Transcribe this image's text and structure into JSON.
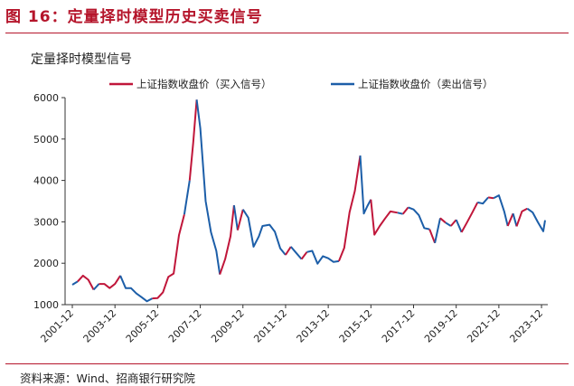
{
  "figure_title": "图 16：定量择时模型历史买卖信号",
  "source": "资料来源：Wind、招商银行研究院",
  "colors": {
    "buy": "#c0163a",
    "sell": "#1c5ea8",
    "accent": "#b5152b"
  },
  "chart_data": {
    "type": "line",
    "title": "定量择时模型信号",
    "xlabel": "",
    "ylabel": "",
    "ylim": [
      1000,
      6000
    ],
    "yticks": [
      1000,
      2000,
      3000,
      4000,
      5000,
      6000
    ],
    "xlim": [
      "2001-12",
      "2024-02"
    ],
    "xticks": [
      "2001-12",
      "2003-12",
      "2005-12",
      "2007-12",
      "2009-12",
      "2011-12",
      "2013-12",
      "2015-12",
      "2017-12",
      "2019-12",
      "2021-12",
      "2023-12"
    ],
    "legend_position": "top",
    "grid": false,
    "series": [
      {
        "name": "上证指数收盘价（买入信号）",
        "color": "#c0163a"
      },
      {
        "name": "上证指数收盘价（卖出信号）",
        "color": "#1c5ea8"
      }
    ],
    "points": [
      [
        "2001-12",
        1480,
        "s"
      ],
      [
        "2002-03",
        1560,
        "s"
      ],
      [
        "2002-06",
        1700,
        "b"
      ],
      [
        "2002-09",
        1600,
        "b"
      ],
      [
        "2002-12",
        1360,
        "b"
      ],
      [
        "2003-03",
        1500,
        "s"
      ],
      [
        "2003-06",
        1500,
        "b"
      ],
      [
        "2003-09",
        1400,
        "b"
      ],
      [
        "2003-12",
        1500,
        "b"
      ],
      [
        "2004-03",
        1700,
        "b"
      ],
      [
        "2004-06",
        1400,
        "s"
      ],
      [
        "2004-09",
        1400,
        "s"
      ],
      [
        "2004-12",
        1270,
        "s"
      ],
      [
        "2005-03",
        1180,
        "s"
      ],
      [
        "2005-06",
        1080,
        "s"
      ],
      [
        "2005-09",
        1150,
        "s"
      ],
      [
        "2005-12",
        1160,
        "b"
      ],
      [
        "2006-03",
        1300,
        "b"
      ],
      [
        "2006-06",
        1670,
        "b"
      ],
      [
        "2006-09",
        1750,
        "b"
      ],
      [
        "2006-12",
        2680,
        "b"
      ],
      [
        "2007-03",
        3180,
        "b"
      ],
      [
        "2007-06",
        4000,
        "s"
      ],
      [
        "2007-08",
        4900,
        "b"
      ],
      [
        "2007-10",
        5950,
        "b"
      ],
      [
        "2007-12",
        5260,
        "s"
      ],
      [
        "2008-03",
        3500,
        "s"
      ],
      [
        "2008-06",
        2750,
        "s"
      ],
      [
        "2008-09",
        2300,
        "s"
      ],
      [
        "2008-11",
        1730,
        "s"
      ],
      [
        "2009-02",
        2100,
        "b"
      ],
      [
        "2009-05",
        2650,
        "b"
      ],
      [
        "2009-07",
        3400,
        "b"
      ],
      [
        "2009-09",
        2800,
        "s"
      ],
      [
        "2009-12",
        3300,
        "b"
      ],
      [
        "2010-03",
        3100,
        "s"
      ],
      [
        "2010-06",
        2400,
        "s"
      ],
      [
        "2010-09",
        2650,
        "s"
      ],
      [
        "2010-11",
        2900,
        "s"
      ],
      [
        "2011-03",
        2930,
        "s"
      ],
      [
        "2011-06",
        2760,
        "s"
      ],
      [
        "2011-09",
        2360,
        "s"
      ],
      [
        "2011-12",
        2200,
        "s"
      ],
      [
        "2012-03",
        2400,
        "b"
      ],
      [
        "2012-06",
        2250,
        "s"
      ],
      [
        "2012-09",
        2100,
        "s"
      ],
      [
        "2012-12",
        2270,
        "b"
      ],
      [
        "2013-03",
        2300,
        "s"
      ],
      [
        "2013-06",
        1990,
        "s"
      ],
      [
        "2013-09",
        2170,
        "s"
      ],
      [
        "2013-12",
        2120,
        "s"
      ],
      [
        "2014-03",
        2030,
        "s"
      ],
      [
        "2014-06",
        2050,
        "s"
      ],
      [
        "2014-09",
        2370,
        "b"
      ],
      [
        "2014-12",
        3230,
        "b"
      ],
      [
        "2015-03",
        3750,
        "b"
      ],
      [
        "2015-06",
        4600,
        "b"
      ],
      [
        "2015-08",
        3200,
        "s"
      ],
      [
        "2015-10",
        3380,
        "s"
      ],
      [
        "2015-12",
        3540,
        "s"
      ],
      [
        "2016-02",
        2690,
        "b"
      ],
      [
        "2016-05",
        2900,
        "b"
      ],
      [
        "2016-08",
        3080,
        "b"
      ],
      [
        "2016-11",
        3250,
        "b"
      ],
      [
        "2017-03",
        3220,
        "b"
      ],
      [
        "2017-06",
        3190,
        "s"
      ],
      [
        "2017-09",
        3350,
        "b"
      ],
      [
        "2017-12",
        3300,
        "s"
      ],
      [
        "2018-03",
        3160,
        "s"
      ],
      [
        "2018-06",
        2850,
        "s"
      ],
      [
        "2018-09",
        2820,
        "s"
      ],
      [
        "2018-12",
        2490,
        "b"
      ],
      [
        "2019-03",
        3090,
        "s"
      ],
      [
        "2019-06",
        2980,
        "b"
      ],
      [
        "2019-09",
        2900,
        "s"
      ],
      [
        "2019-12",
        3050,
        "b"
      ],
      [
        "2020-03",
        2750,
        "s"
      ],
      [
        "2020-06",
        2980,
        "b"
      ],
      [
        "2020-09",
        3220,
        "b"
      ],
      [
        "2020-12",
        3470,
        "b"
      ],
      [
        "2021-03",
        3440,
        "s"
      ],
      [
        "2021-06",
        3590,
        "s"
      ],
      [
        "2021-09",
        3570,
        "b"
      ],
      [
        "2021-12",
        3640,
        "s"
      ],
      [
        "2022-03",
        3250,
        "s"
      ],
      [
        "2022-05",
        2900,
        "s"
      ],
      [
        "2022-08",
        3200,
        "b"
      ],
      [
        "2022-10",
        2890,
        "s"
      ],
      [
        "2023-01",
        3250,
        "b"
      ],
      [
        "2023-04",
        3320,
        "b"
      ],
      [
        "2023-07",
        3230,
        "s"
      ],
      [
        "2023-10",
        2990,
        "s"
      ],
      [
        "2024-01",
        2770,
        "s"
      ],
      [
        "2024-02",
        3040,
        "s"
      ]
    ]
  }
}
